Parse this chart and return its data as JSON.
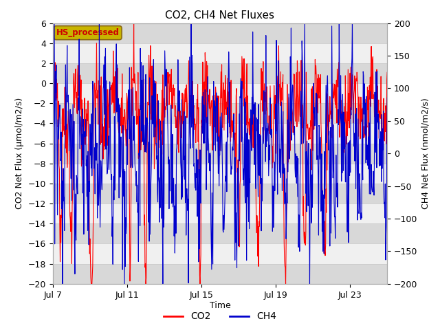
{
  "title": "CO2, CH4 Net Fluxes",
  "xlabel": "Time",
  "ylabel_left": "CO2 Net Flux (μmol/m2/s)",
  "ylabel_right": "CH4 Net Flux (nmol/m2/s)",
  "ylim_left": [
    -20,
    6
  ],
  "ylim_right": [
    -200,
    200
  ],
  "yticks_left": [
    -20,
    -18,
    -16,
    -14,
    -12,
    -10,
    -8,
    -6,
    -4,
    -2,
    0,
    2,
    4,
    6
  ],
  "yticks_right": [
    -200,
    -150,
    -100,
    -50,
    0,
    50,
    100,
    150,
    200
  ],
  "xtick_positions": [
    0,
    4,
    8,
    12,
    16
  ],
  "xtick_labels": [
    "Jul 7",
    "Jul 11",
    "Jul 15",
    "Jul 19",
    "Jul 23"
  ],
  "xlim": [
    0,
    18
  ],
  "co2_color": "#FF0000",
  "ch4_color": "#0000CC",
  "background_color": "#ffffff",
  "plot_bg_light": "#f0f0f0",
  "plot_bg_dark": "#d8d8d8",
  "grid_color": "#cccccc",
  "annotation_text": "HS_processed",
  "annotation_fg": "#cc0000",
  "annotation_bg": "#c8b400",
  "annotation_border": "#8b6914",
  "legend_co2": "CO2",
  "legend_ch4": "CH4",
  "title_fontsize": 11,
  "axis_label_fontsize": 9,
  "tick_fontsize": 9,
  "linewidth": 0.8
}
